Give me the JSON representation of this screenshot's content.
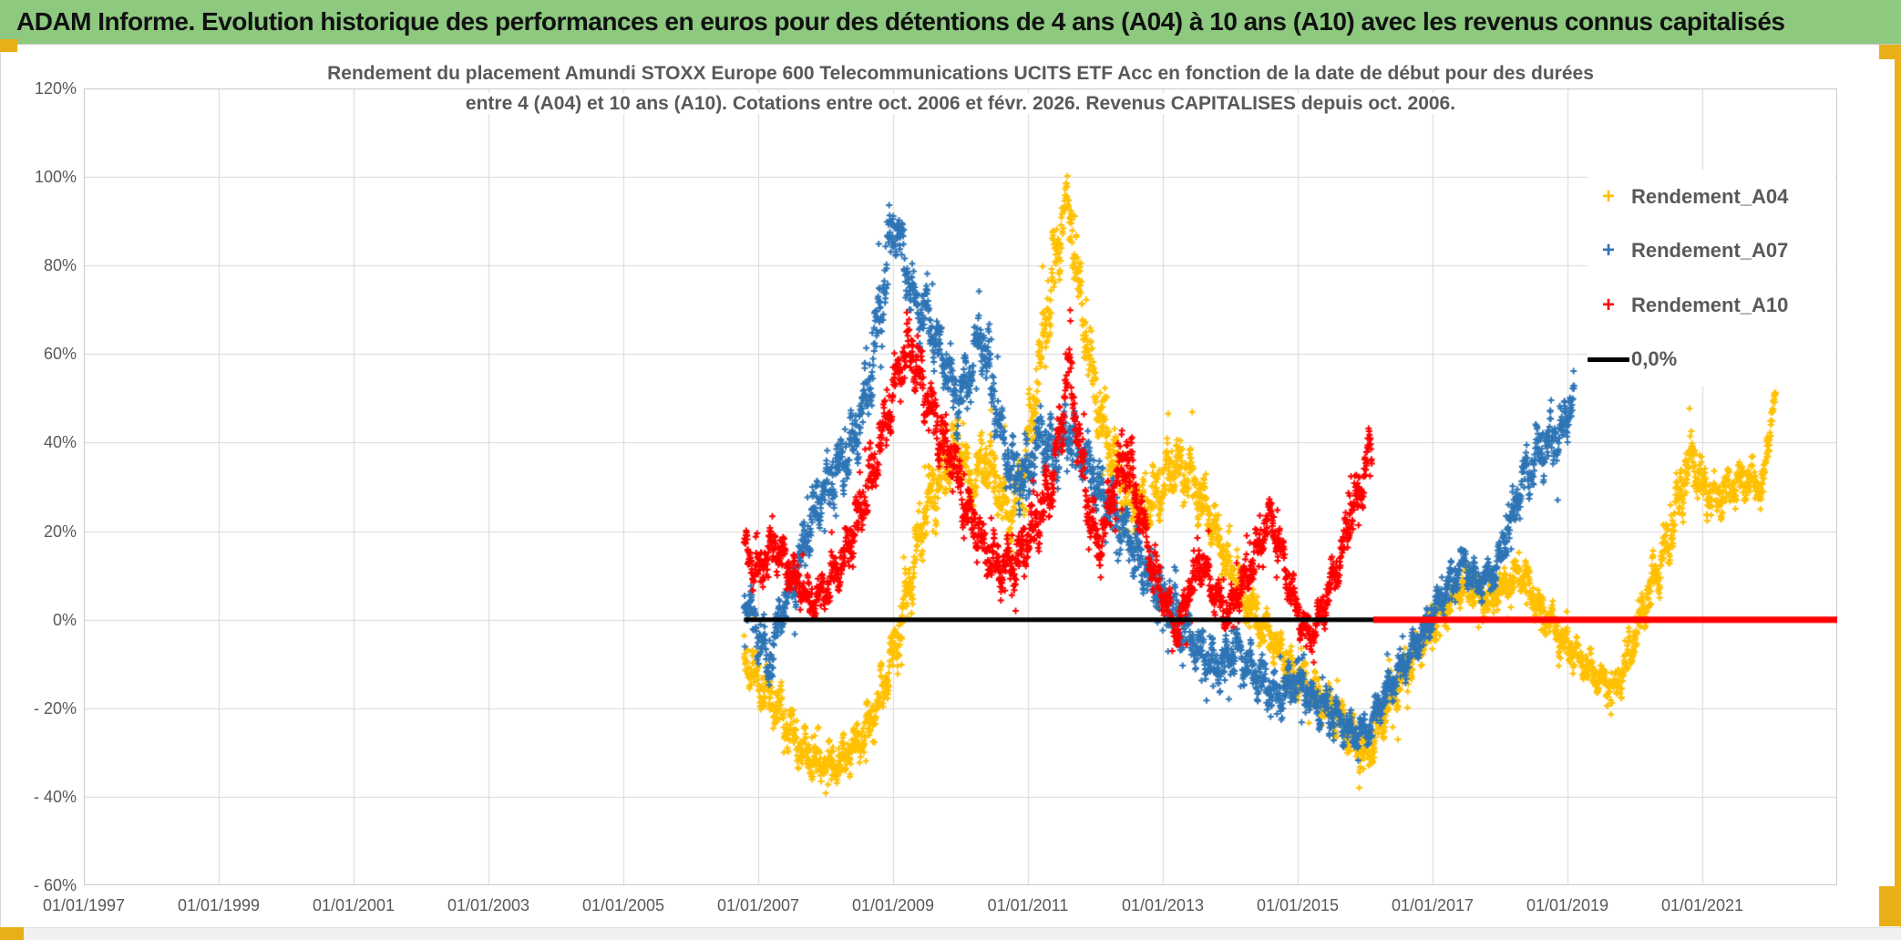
{
  "page": {
    "title": "ADAM Informe. Evolution historique des performances en euros pour des détentions de 4 ans (A04) à 10 ans (A10) avec les revenus connus capitalisés",
    "header_bg": "#8dc97e",
    "accent_color": "#e9af17"
  },
  "chart": {
    "subtitle_line1": "Rendement du placement Amundi STOXX Europe 600 Telecommunications UCITS ETF Acc en fonction de la date de début pour des durées",
    "subtitle_line2": "entre 4 (A04) et 10 ans (A10). Cotations entre oct. 2006 et févr. 2026. Revenus CAPITALISES depuis oct. 2006.",
    "legend": [
      {
        "label": "Rendement_A04",
        "color": "#FFC000",
        "marker": "plus"
      },
      {
        "label": "Rendement_A07",
        "color": "#2E75B6",
        "marker": "plus"
      },
      {
        "label": "Rendement_A10",
        "color": "#FF0000",
        "marker": "plus"
      },
      {
        "label": "0,0%",
        "color": "#000000",
        "marker": "line"
      }
    ]
  },
  "chart_data": {
    "type": "scatter",
    "title": "Rendement du placement Amundi STOXX Europe 600 Telecommunications UCITS ETF Acc en fonction de la date de début pour des durées entre 4 (A04) et 10 ans (A10). Cotations entre oct. 2006 et févr. 2026. Revenus CAPITALISES depuis oct. 2006.",
    "xlabel": "",
    "ylabel": "",
    "grid": true,
    "legend_position": "inside-top-right",
    "x_axis": {
      "range_years": [
        1997.0,
        2023.0
      ],
      "ticks": [
        {
          "year": 1997,
          "label": "01/01/1997"
        },
        {
          "year": 1999,
          "label": "01/01/1999"
        },
        {
          "year": 2001,
          "label": "01/01/2001"
        },
        {
          "year": 2003,
          "label": "01/01/2003"
        },
        {
          "year": 2005,
          "label": "01/01/2005"
        },
        {
          "year": 2007,
          "label": "01/01/2007"
        },
        {
          "year": 2009,
          "label": "01/01/2009"
        },
        {
          "year": 2011,
          "label": "01/01/2011"
        },
        {
          "year": 2013,
          "label": "01/01/2013"
        },
        {
          "year": 2015,
          "label": "01/01/2015"
        },
        {
          "year": 2017,
          "label": "01/01/2017"
        },
        {
          "year": 2019,
          "label": "01/01/2019"
        },
        {
          "year": 2021,
          "label": "01/01/2021"
        }
      ]
    },
    "y_axis": {
      "range_percent": [
        -60,
        120
      ],
      "ticks": [
        {
          "value": 120,
          "label": "120%"
        },
        {
          "value": 100,
          "label": "100%"
        },
        {
          "value": 80,
          "label": "80%"
        },
        {
          "value": 60,
          "label": "60%"
        },
        {
          "value": 40,
          "label": "40%"
        },
        {
          "value": 20,
          "label": "20%"
        },
        {
          "value": 0,
          "label": "0%"
        },
        {
          "value": -20,
          "label": "- 20%"
        },
        {
          "value": -40,
          "label": "- 40%"
        },
        {
          "value": -60,
          "label": "- 60%"
        }
      ]
    },
    "series": [
      {
        "name": "Rendement_A04",
        "color": "#FFC000",
        "marker": "plus",
        "start_year": 2006.79,
        "end_year": 2022.1,
        "anchors_year_pct_spread": [
          [
            2006.8,
            -8,
            5
          ],
          [
            2007.0,
            -14,
            6
          ],
          [
            2007.3,
            -20,
            6
          ],
          [
            2007.6,
            -28,
            5
          ],
          [
            2007.9,
            -33,
            4
          ],
          [
            2008.2,
            -32,
            5
          ],
          [
            2008.5,
            -28,
            5
          ],
          [
            2008.75,
            -20,
            6
          ],
          [
            2009.0,
            -8,
            7
          ],
          [
            2009.2,
            5,
            8
          ],
          [
            2009.45,
            22,
            9
          ],
          [
            2009.7,
            33,
            8
          ],
          [
            2009.95,
            40,
            7
          ],
          [
            2010.15,
            30,
            7
          ],
          [
            2010.35,
            37,
            7
          ],
          [
            2010.55,
            30,
            8
          ],
          [
            2010.75,
            22,
            7
          ],
          [
            2010.95,
            35,
            8
          ],
          [
            2011.15,
            55,
            9
          ],
          [
            2011.35,
            75,
            10
          ],
          [
            2011.55,
            95,
            8
          ],
          [
            2011.65,
            88,
            8
          ],
          [
            2011.8,
            70,
            9
          ],
          [
            2011.95,
            55,
            8
          ],
          [
            2012.15,
            42,
            8
          ],
          [
            2012.4,
            30,
            7
          ],
          [
            2012.65,
            24,
            7
          ],
          [
            2012.9,
            28,
            7
          ],
          [
            2013.15,
            35,
            7
          ],
          [
            2013.4,
            32,
            7
          ],
          [
            2013.65,
            25,
            6
          ],
          [
            2013.9,
            15,
            6
          ],
          [
            2014.15,
            6,
            6
          ],
          [
            2014.4,
            0,
            5
          ],
          [
            2014.7,
            -7,
            5
          ],
          [
            2015.0,
            -13,
            5
          ],
          [
            2015.3,
            -17,
            5
          ],
          [
            2015.6,
            -22,
            5
          ],
          [
            2015.9,
            -28,
            5
          ],
          [
            2016.05,
            -31,
            4
          ],
          [
            2016.3,
            -20,
            5
          ],
          [
            2016.6,
            -11,
            5
          ],
          [
            2016.9,
            -4,
            4
          ],
          [
            2017.2,
            3,
            4
          ],
          [
            2017.5,
            8,
            4
          ],
          [
            2017.75,
            4,
            4
          ],
          [
            2018.0,
            7,
            4
          ],
          [
            2018.3,
            10,
            4
          ],
          [
            2018.6,
            3,
            4
          ],
          [
            2018.9,
            -4,
            4
          ],
          [
            2019.2,
            -9,
            4
          ],
          [
            2019.5,
            -14,
            4
          ],
          [
            2019.7,
            -16,
            4
          ],
          [
            2019.95,
            -6,
            5
          ],
          [
            2020.2,
            6,
            6
          ],
          [
            2020.45,
            15,
            6
          ],
          [
            2020.7,
            30,
            7
          ],
          [
            2020.85,
            38,
            6
          ],
          [
            2021.0,
            30,
            6
          ],
          [
            2021.2,
            27,
            5
          ],
          [
            2021.45,
            30,
            5
          ],
          [
            2021.7,
            32,
            5
          ],
          [
            2021.9,
            29,
            5
          ],
          [
            2022.05,
            50,
            3
          ]
        ]
      },
      {
        "name": "Rendement_A07",
        "color": "#2E75B6",
        "marker": "plus",
        "start_year": 2006.79,
        "end_year": 2019.1,
        "anchors_year_pct_spread": [
          [
            2006.8,
            5,
            5
          ],
          [
            2007.0,
            -3,
            6
          ],
          [
            2007.15,
            -11,
            5
          ],
          [
            2007.35,
            2,
            6
          ],
          [
            2007.6,
            12,
            6
          ],
          [
            2007.85,
            25,
            7
          ],
          [
            2008.1,
            32,
            7
          ],
          [
            2008.35,
            38,
            7
          ],
          [
            2008.6,
            50,
            8
          ],
          [
            2008.8,
            68,
            9
          ],
          [
            2008.95,
            85,
            8
          ],
          [
            2009.05,
            90,
            7
          ],
          [
            2009.2,
            78,
            8
          ],
          [
            2009.35,
            68,
            8
          ],
          [
            2009.5,
            70,
            7
          ],
          [
            2009.65,
            62,
            7
          ],
          [
            2009.8,
            57,
            7
          ],
          [
            2009.95,
            48,
            7
          ],
          [
            2010.15,
            55,
            7
          ],
          [
            2010.3,
            65,
            7
          ],
          [
            2010.45,
            55,
            7
          ],
          [
            2010.6,
            42,
            7
          ],
          [
            2010.8,
            32,
            7
          ],
          [
            2011.0,
            33,
            7
          ],
          [
            2011.2,
            42,
            7
          ],
          [
            2011.4,
            37,
            7
          ],
          [
            2011.6,
            43,
            7
          ],
          [
            2011.8,
            37,
            6
          ],
          [
            2012.0,
            31,
            6
          ],
          [
            2012.3,
            24,
            6
          ],
          [
            2012.6,
            15,
            6
          ],
          [
            2012.9,
            7,
            6
          ],
          [
            2013.2,
            1,
            6
          ],
          [
            2013.5,
            -6,
            5
          ],
          [
            2013.8,
            -11,
            5
          ],
          [
            2014.1,
            -7,
            5
          ],
          [
            2014.4,
            -13,
            5
          ],
          [
            2014.7,
            -17,
            5
          ],
          [
            2015.0,
            -14,
            5
          ],
          [
            2015.3,
            -19,
            5
          ],
          [
            2015.6,
            -23,
            5
          ],
          [
            2015.85,
            -26,
            4
          ],
          [
            2016.05,
            -25,
            4
          ],
          [
            2016.3,
            -17,
            4
          ],
          [
            2016.6,
            -10,
            4
          ],
          [
            2016.9,
            -2,
            4
          ],
          [
            2017.2,
            7,
            4
          ],
          [
            2017.45,
            13,
            4
          ],
          [
            2017.7,
            8,
            4
          ],
          [
            2017.95,
            12,
            4
          ],
          [
            2018.15,
            22,
            5
          ],
          [
            2018.35,
            32,
            6
          ],
          [
            2018.55,
            37,
            6
          ],
          [
            2018.75,
            40,
            6
          ],
          [
            2018.95,
            44,
            6
          ],
          [
            2019.08,
            50,
            4
          ]
        ]
      },
      {
        "name": "Rendement_A10",
        "color": "#FF0000",
        "marker": "plus",
        "start_year": 2006.79,
        "end_year": 2016.1,
        "anchors_year_pct_spread": [
          [
            2006.8,
            15,
            5
          ],
          [
            2007.0,
            11,
            5
          ],
          [
            2007.25,
            17,
            5
          ],
          [
            2007.5,
            10,
            5
          ],
          [
            2007.75,
            4,
            5
          ],
          [
            2008.0,
            7,
            5
          ],
          [
            2008.3,
            15,
            6
          ],
          [
            2008.6,
            28,
            7
          ],
          [
            2008.85,
            42,
            7
          ],
          [
            2009.05,
            55,
            7
          ],
          [
            2009.25,
            62,
            7
          ],
          [
            2009.45,
            52,
            7
          ],
          [
            2009.65,
            44,
            7
          ],
          [
            2009.85,
            37,
            6
          ],
          [
            2010.05,
            27,
            6
          ],
          [
            2010.3,
            18,
            6
          ],
          [
            2010.6,
            11,
            6
          ],
          [
            2010.9,
            14,
            6
          ],
          [
            2011.1,
            21,
            6
          ],
          [
            2011.3,
            28,
            7
          ],
          [
            2011.5,
            45,
            8
          ],
          [
            2011.6,
            57,
            7
          ],
          [
            2011.75,
            40,
            7
          ],
          [
            2011.9,
            25,
            6
          ],
          [
            2012.05,
            15,
            6
          ],
          [
            2012.25,
            28,
            7
          ],
          [
            2012.45,
            38,
            8
          ],
          [
            2012.65,
            26,
            6
          ],
          [
            2012.85,
            12,
            6
          ],
          [
            2013.05,
            4,
            5
          ],
          [
            2013.2,
            -3,
            4
          ],
          [
            2013.4,
            7,
            5
          ],
          [
            2013.55,
            14,
            5
          ],
          [
            2013.75,
            7,
            5
          ],
          [
            2013.95,
            1,
            4
          ],
          [
            2014.15,
            7,
            5
          ],
          [
            2014.4,
            16,
            5
          ],
          [
            2014.6,
            24,
            5
          ],
          [
            2014.8,
            12,
            5
          ],
          [
            2015.0,
            2,
            4
          ],
          [
            2015.2,
            -5,
            4
          ],
          [
            2015.4,
            4,
            5
          ],
          [
            2015.6,
            12,
            5
          ],
          [
            2015.8,
            25,
            6
          ],
          [
            2015.95,
            30,
            5
          ],
          [
            2016.05,
            38,
            5
          ]
        ]
      }
    ],
    "ref_lines": [
      {
        "name": "0,0%",
        "color": "#000000",
        "y_percent": 0,
        "from_year": 2006.79,
        "to_year": 2023.0,
        "width": 5
      },
      {
        "name": "Rendement_A10 zero tail",
        "color": "#FF0000",
        "y_percent": 0,
        "from_year": 2016.12,
        "to_year": 2023.0,
        "width": 7
      }
    ]
  }
}
